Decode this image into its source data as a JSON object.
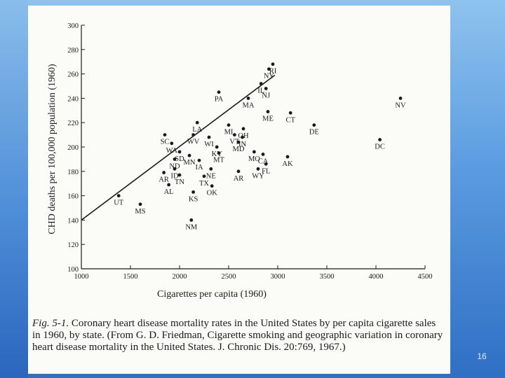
{
  "page_number": "16",
  "caption": {
    "label": "Fig. 5-1.",
    "text": "Coronary heart disease mortality rates in the United States by per capita cigarette sales in 1960, by state. (From G. D. Friedman, Cigarette smoking and geographic variation in coronary heart disease mortality in the United States. J. Chronic Dis. 20:769, 1967.)"
  },
  "chart_data": {
    "type": "scatter",
    "title": "",
    "xlabel": "Cigarettes per capita (1960)",
    "ylabel": "CHD deaths per 100,000 population (1960)",
    "xlim": [
      1000,
      4500
    ],
    "ylim": [
      100,
      300
    ],
    "x_ticks": [
      "1000",
      "1500",
      "2000",
      "2500",
      "3000",
      "3500",
      "4000",
      "4500"
    ],
    "y_ticks": [
      "100",
      "120",
      "140",
      "160",
      "180",
      "200",
      "220",
      "240",
      "260",
      "280",
      "300"
    ],
    "grid": false,
    "regression_line": {
      "x": [
        1000,
        2970
      ],
      "y": [
        140,
        259
      ]
    },
    "points": [
      {
        "label": "RI",
        "x": 2950,
        "y": 268
      },
      {
        "label": "NY",
        "x": 2910,
        "y": 264
      },
      {
        "label": "IL",
        "x": 2830,
        "y": 252
      },
      {
        "label": "NJ",
        "x": 2880,
        "y": 248
      },
      {
        "label": "PA",
        "x": 2400,
        "y": 245
      },
      {
        "label": "MA",
        "x": 2700,
        "y": 240
      },
      {
        "label": "NV",
        "x": 4250,
        "y": 240
      },
      {
        "label": "CT",
        "x": 3130,
        "y": 228
      },
      {
        "label": "ME",
        "x": 2900,
        "y": 229
      },
      {
        "label": "LA",
        "x": 2180,
        "y": 220
      },
      {
        "label": "MI",
        "x": 2500,
        "y": 218
      },
      {
        "label": "DE",
        "x": 3370,
        "y": 218
      },
      {
        "label": "OH",
        "x": 2650,
        "y": 215
      },
      {
        "label": "SC",
        "x": 1850,
        "y": 210
      },
      {
        "label": "WV",
        "x": 2140,
        "y": 210
      },
      {
        "label": "WI",
        "x": 2300,
        "y": 208
      },
      {
        "label": "VT",
        "x": 2560,
        "y": 210
      },
      {
        "label": "IN",
        "x": 2640,
        "y": 208
      },
      {
        "label": "DC",
        "x": 4040,
        "y": 206
      },
      {
        "label": "WA",
        "x": 1920,
        "y": 203
      },
      {
        "label": "KY",
        "x": 2380,
        "y": 200
      },
      {
        "label": "MD",
        "x": 2600,
        "y": 204
      },
      {
        "label": "MO",
        "x": 2760,
        "y": 196
      },
      {
        "label": "SD",
        "x": 2000,
        "y": 196
      },
      {
        "label": "MN",
        "x": 2100,
        "y": 193
      },
      {
        "label": "MT",
        "x": 2400,
        "y": 195
      },
      {
        "label": "CA",
        "x": 2850,
        "y": 194
      },
      {
        "label": "AK",
        "x": 3100,
        "y": 192
      },
      {
        "label": "ND",
        "x": 1950,
        "y": 190
      },
      {
        "label": "IA",
        "x": 2200,
        "y": 189
      },
      {
        "label": "FL",
        "x": 2880,
        "y": 186
      },
      {
        "label": "ID",
        "x": 1950,
        "y": 182
      },
      {
        "label": "NE",
        "x": 2320,
        "y": 182
      },
      {
        "label": "AR",
        "x": 1840,
        "y": 179
      },
      {
        "label": "AR",
        "x": 2600,
        "y": 180
      },
      {
        "label": "TN",
        "x": 2000,
        "y": 177
      },
      {
        "label": "TX",
        "x": 2250,
        "y": 176
      },
      {
        "label": "WY",
        "x": 2800,
        "y": 182
      },
      {
        "label": "AL",
        "x": 1890,
        "y": 169
      },
      {
        "label": "OK",
        "x": 2330,
        "y": 168
      },
      {
        "label": "UT",
        "x": 1380,
        "y": 160
      },
      {
        "label": "KS",
        "x": 2140,
        "y": 163
      },
      {
        "label": "MS",
        "x": 1600,
        "y": 153
      },
      {
        "label": "NM",
        "x": 2120,
        "y": 140
      }
    ]
  }
}
